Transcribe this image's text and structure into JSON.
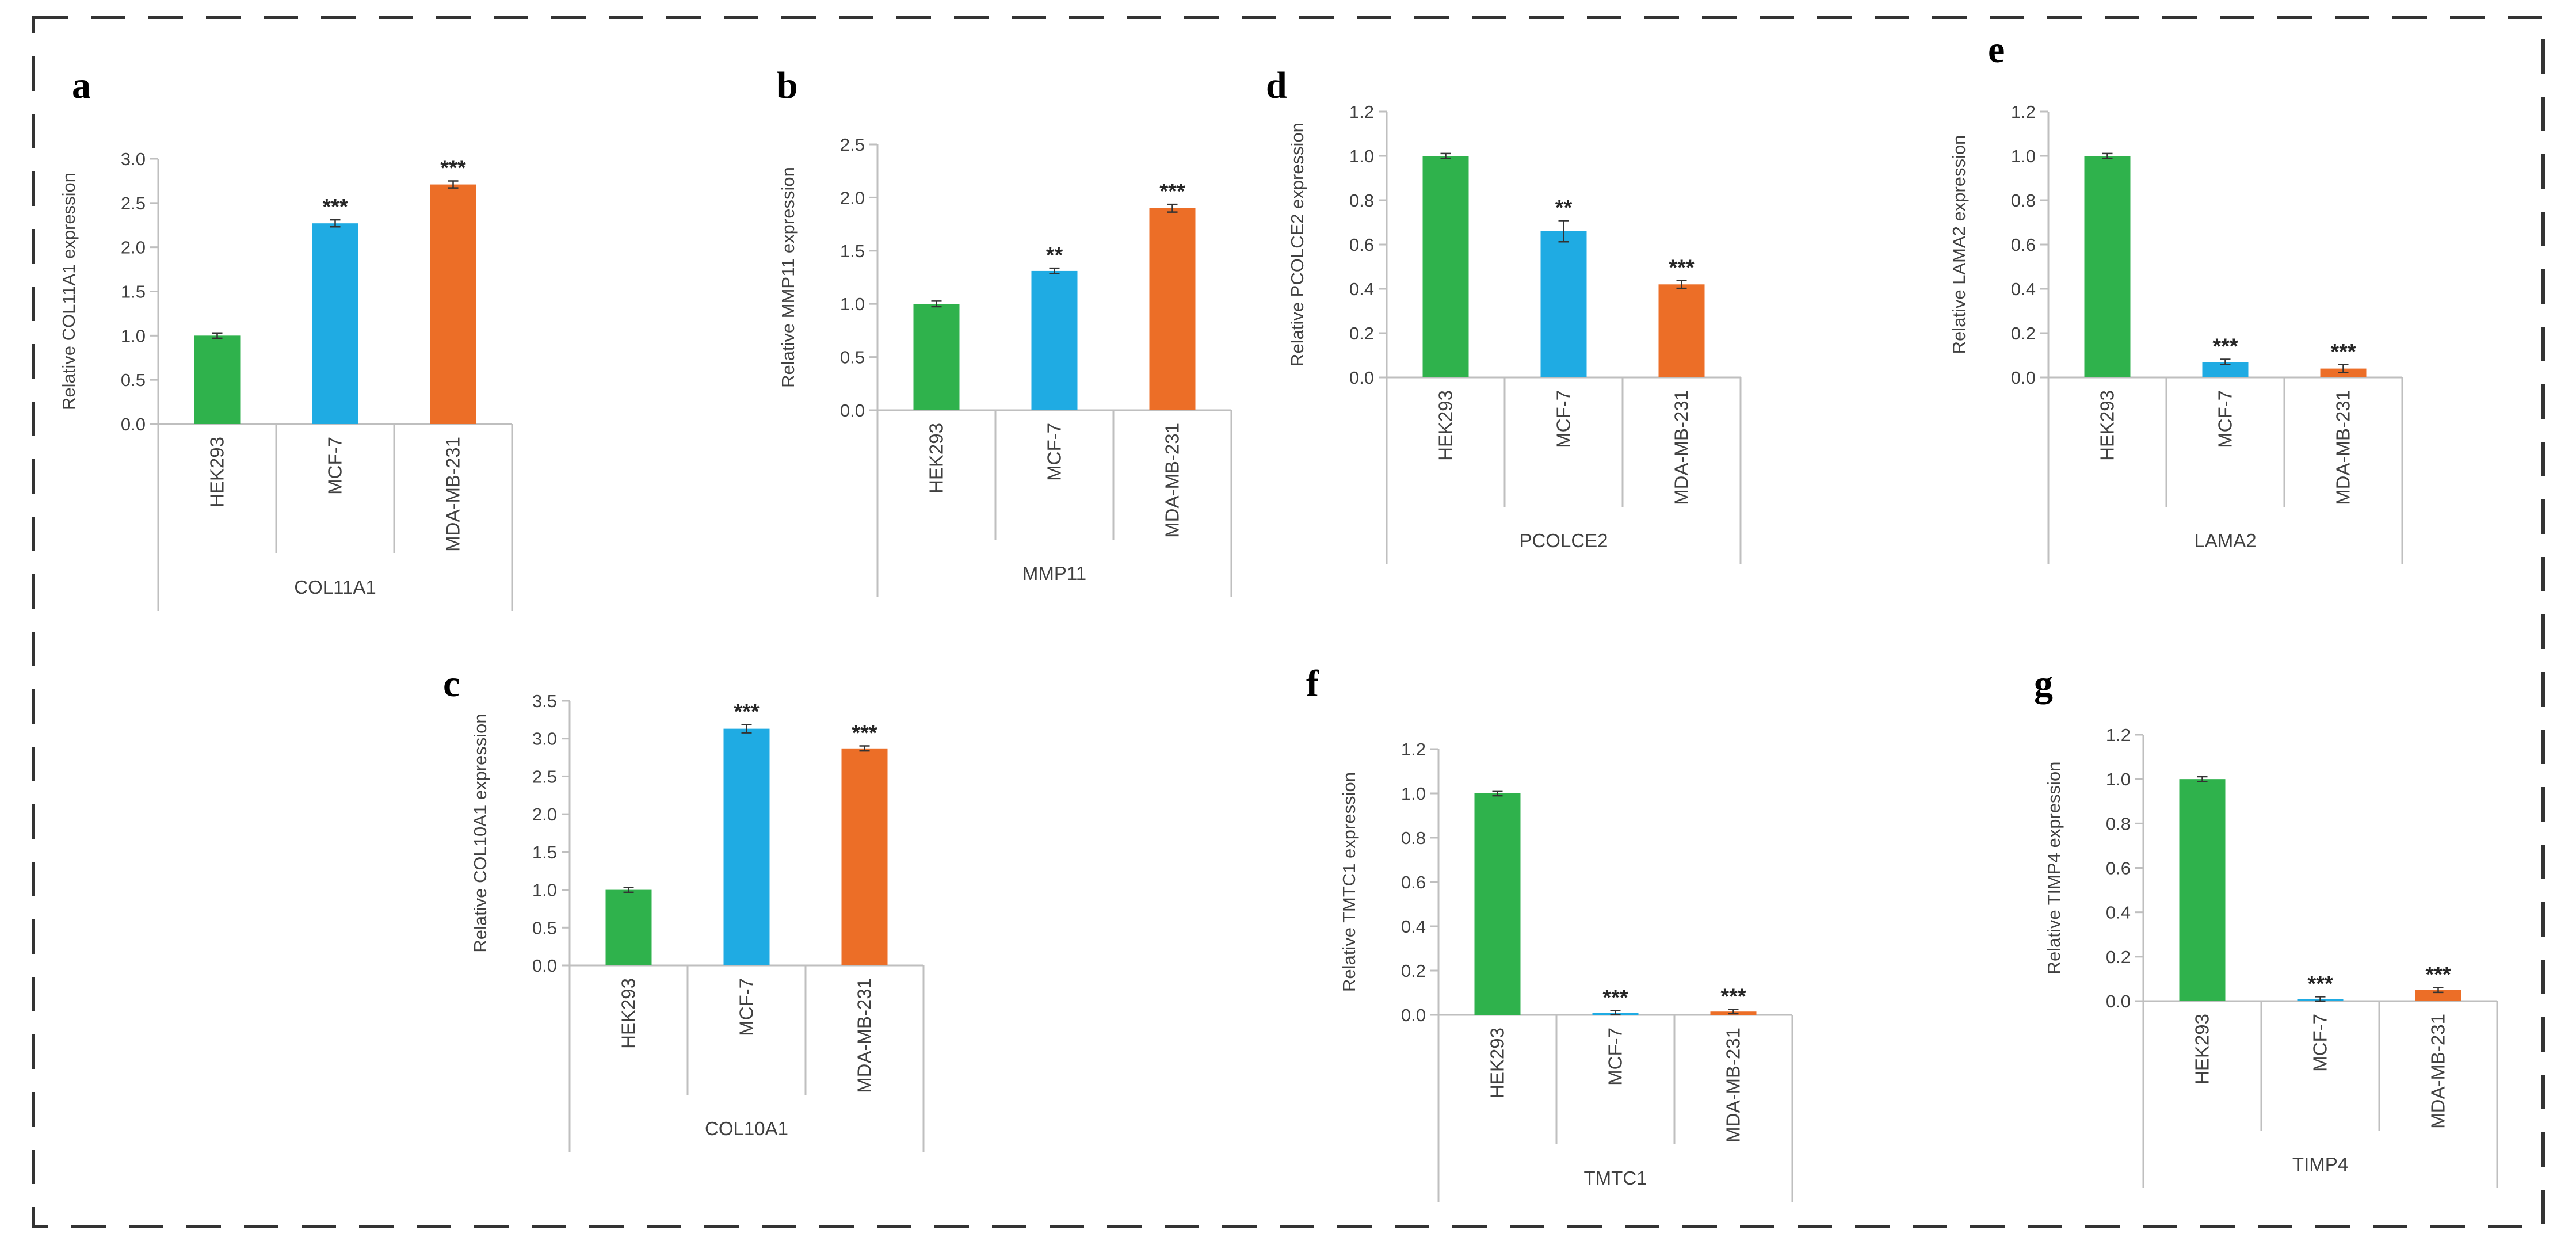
{
  "colors": {
    "HEK293": "#2fb24c",
    "MCF-7": "#1fabe3",
    "MDA-MB-231": "#ec6e27"
  },
  "chart_data": [
    {
      "panel": "a",
      "type": "bar",
      "gene": "COL11A1",
      "ylabel": "Relative COL11A1 expression",
      "categories": [
        "HEK293",
        "MCF-7",
        "MDA-MB-231"
      ],
      "values": [
        1.0,
        2.27,
        2.71
      ],
      "errors": [
        0.01,
        0.02,
        0.02
      ],
      "significance": [
        "",
        "***",
        "***"
      ],
      "ylim": [
        0,
        3.0
      ],
      "yticks": [
        0,
        0.5,
        1.0,
        1.5,
        2.0,
        2.5,
        3.0
      ],
      "tick_labels": [
        "0.0",
        "0.5",
        "1.0",
        "1.5",
        "2.0",
        "2.5",
        "3.0"
      ]
    },
    {
      "panel": "b",
      "type": "bar",
      "gene": "MMP11",
      "ylabel": "Relative MMP11 expression",
      "categories": [
        "HEK293",
        "MCF-7",
        "MDA-MB-231"
      ],
      "values": [
        1.0,
        1.31,
        1.9
      ],
      "errors": [
        0.01,
        0.01,
        0.02
      ],
      "significance": [
        "",
        "**",
        "***"
      ],
      "ylim": [
        0,
        2.5
      ],
      "yticks": [
        0,
        0.5,
        1.0,
        1.5,
        2.0,
        2.5
      ],
      "tick_labels": [
        "0.0",
        "0.5",
        "1.0",
        "1.5",
        "2.0",
        "2.5"
      ]
    },
    {
      "panel": "c",
      "type": "bar",
      "gene": "COL10A1",
      "ylabel": "Relative COL10A1 expression",
      "categories": [
        "HEK293",
        "MCF-7",
        "MDA-MB-231"
      ],
      "values": [
        1.0,
        3.13,
        2.87
      ],
      "errors": [
        0.01,
        0.03,
        0.01
      ],
      "significance": [
        "",
        "***",
        "***"
      ],
      "ylim": [
        0,
        3.5
      ],
      "yticks": [
        0,
        0.5,
        1.0,
        1.5,
        2.0,
        2.5,
        3.0,
        3.5
      ],
      "tick_labels": [
        "0.0",
        "0.5",
        "1.0",
        "1.5",
        "2.0",
        "2.5",
        "3.0",
        "3.5"
      ]
    },
    {
      "panel": "d",
      "type": "bar",
      "gene": "PCOLCE2",
      "ylabel": "Relative PCOLCE2 expression",
      "categories": [
        "HEK293",
        "MCF-7",
        "MDA-MB-231"
      ],
      "values": [
        1.0,
        0.66,
        0.42
      ],
      "errors": [
        0.003,
        0.04,
        0.01
      ],
      "significance": [
        "",
        "**",
        "***"
      ],
      "ylim": [
        0,
        1.2
      ],
      "yticks": [
        0,
        0.2,
        0.4,
        0.6,
        0.8,
        1.0,
        1.2
      ],
      "tick_labels": [
        "0.0",
        "0.2",
        "0.4",
        "0.6",
        "0.8",
        "1.0",
        "1.2"
      ]
    },
    {
      "panel": "e",
      "type": "bar",
      "gene": "LAMA2",
      "ylabel": "Relative LAMA2 expression",
      "categories": [
        "HEK293",
        "MCF-7",
        "MDA-MB-231"
      ],
      "values": [
        1.0,
        0.07,
        0.04
      ],
      "errors": [
        0.003,
        0.004,
        0.01
      ],
      "significance": [
        "",
        "***",
        "***"
      ],
      "ylim": [
        0,
        1.2
      ],
      "yticks": [
        0,
        0.2,
        0.4,
        0.6,
        0.8,
        1.0,
        1.2
      ],
      "tick_labels": [
        "0.0",
        "0.2",
        "0.4",
        "0.6",
        "0.8",
        "1.0",
        "1.2"
      ]
    },
    {
      "panel": "f",
      "type": "bar",
      "gene": "TMTC1",
      "ylabel": "Relative TMTC1 expression",
      "categories": [
        "HEK293",
        "MCF-7",
        "MDA-MB-231"
      ],
      "values": [
        1.0,
        0.01,
        0.015
      ],
      "errors": [
        0.003,
        0.002,
        0.002
      ],
      "significance": [
        "",
        "***",
        "***"
      ],
      "ylim": [
        0,
        1.2
      ],
      "yticks": [
        0,
        0.2,
        0.4,
        0.6,
        0.8,
        1.0,
        1.2
      ],
      "tick_labels": [
        "0.0",
        "0.2",
        "0.4",
        "0.6",
        "0.8",
        "1.0",
        "1.2"
      ]
    },
    {
      "panel": "g",
      "type": "bar",
      "gene": "TIMP4",
      "ylabel": "Relative TIMP4 expression",
      "categories": [
        "HEK293",
        "MCF-7",
        "MDA-MB-231"
      ],
      "values": [
        1.0,
        0.01,
        0.05
      ],
      "errors": [
        0.003,
        0.002,
        0.003
      ],
      "significance": [
        "",
        "***",
        "***"
      ],
      "ylim": [
        0,
        1.2
      ],
      "yticks": [
        0,
        0.2,
        0.4,
        0.6,
        0.8,
        1.0,
        1.2
      ],
      "tick_labels": [
        "0.0",
        "0.2",
        "0.4",
        "0.6",
        "0.8",
        "1.0",
        "1.2"
      ]
    }
  ]
}
